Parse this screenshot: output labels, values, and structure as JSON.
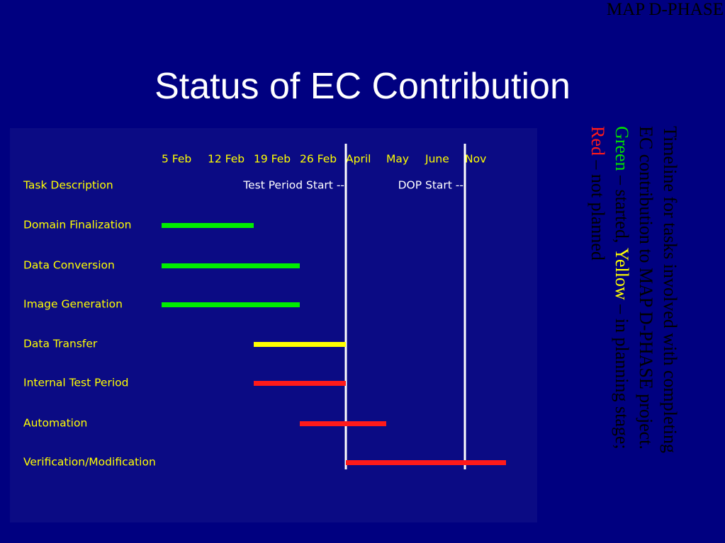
{
  "corner_label": "MAP D-PHASE",
  "title": "Status of EC Contribution",
  "timeline": {
    "columns": [
      "5 Feb",
      "12 Feb",
      "19 Feb",
      "26 Feb",
      "April",
      "May",
      "June",
      "Nov"
    ],
    "task_header": "Task Description",
    "milestones": [
      {
        "label": "Test Period Start --",
        "column": 4
      },
      {
        "label": "DOP Start --",
        "column": 7
      }
    ],
    "tasks": [
      {
        "name": "Domain Finalization",
        "start": 0,
        "end": 2,
        "color": "#00ee00"
      },
      {
        "name": "Data Conversion",
        "start": 0,
        "end": 3,
        "color": "#00ee00"
      },
      {
        "name": "Image Generation",
        "start": 0,
        "end": 3,
        "color": "#00ee00"
      },
      {
        "name": "Data Transfer",
        "start": 2,
        "end": 4,
        "color": "#ffff00"
      },
      {
        "name": "Internal Test Period",
        "start": 2,
        "end": 4,
        "color": "#ff1a1a"
      },
      {
        "name": "Automation",
        "start": 3,
        "end": 5,
        "color": "#ff1a1a"
      },
      {
        "name": "Verification/Modification",
        "start": 4,
        "end": 8,
        "color": "#ff1a1a"
      }
    ]
  },
  "legend": {
    "line1": "Timeline for tasks involved with completing",
    "line2": "EC contribution to MAP D-PHASE project.",
    "green": "Green",
    "green_text": " – started, ",
    "yellow": "Yellow",
    "yellow_text": " – in planning stage;",
    "red": "Red",
    "red_text": " – not planned"
  }
}
